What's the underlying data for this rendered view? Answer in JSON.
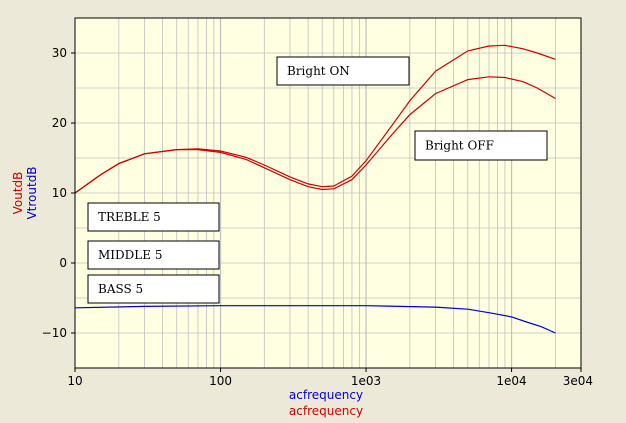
{
  "chart_data": {
    "type": "line",
    "xscale": "log",
    "xlim": [
      10,
      30000
    ],
    "ylim": [
      -15,
      35
    ],
    "x_ticks": [
      {
        "value": 10,
        "label": "10"
      },
      {
        "value": 100,
        "label": "100"
      },
      {
        "value": 1000,
        "label": "1e03"
      },
      {
        "value": 10000,
        "label": "1e04"
      },
      {
        "value": 30000,
        "label": "3e04"
      }
    ],
    "y_ticks": [
      {
        "value": -10,
        "label": "−10"
      },
      {
        "value": 0,
        "label": "0"
      },
      {
        "value": 10,
        "label": "10"
      },
      {
        "value": 20,
        "label": "20"
      },
      {
        "value": 30,
        "label": "30"
      }
    ],
    "xlabel_lines": [
      {
        "text": "acfrequency",
        "color": "#0000CC"
      },
      {
        "text": "acfrequency",
        "color": "#CC0000"
      }
    ],
    "ylabel_lines": [
      {
        "text": "VoutdB",
        "color": "#CC0000"
      },
      {
        "text": "VtroutdB",
        "color": "#0000CC"
      }
    ],
    "grid": true,
    "colors": {
      "red": "#CC0000",
      "blue": "#0000CC",
      "plot_bg": "#FFFFE1",
      "frame_bg": "#ECE9D8"
    },
    "series": [
      {
        "color": "#CC0000",
        "x": [
          10,
          15,
          20,
          30,
          50,
          70,
          100,
          150,
          200,
          300,
          400,
          500,
          600,
          800,
          1000,
          1500,
          2000,
          3000,
          5000,
          7000,
          9000,
          12000,
          15000,
          20000
        ],
        "y": [
          10,
          12.6,
          14.2,
          15.6,
          16.2,
          16.2,
          15.8,
          14.8,
          13.6,
          11.9,
          10.9,
          10.5,
          10.6,
          11.9,
          14,
          18.3,
          21.2,
          24.2,
          26.2,
          26.6,
          26.5,
          25.9,
          25,
          23.5
        ]
      },
      {
        "color": "#CC0000",
        "x": [
          10,
          15,
          20,
          30,
          50,
          70,
          100,
          150,
          200,
          300,
          400,
          500,
          600,
          800,
          1000,
          1500,
          2000,
          3000,
          5000,
          7000,
          9000,
          12000,
          15000,
          20000
        ],
        "y": [
          10,
          12.6,
          14.2,
          15.6,
          16.2,
          16.3,
          16,
          15.1,
          14,
          12.3,
          11.3,
          10.9,
          11,
          12.4,
          14.6,
          19.6,
          23.2,
          27.4,
          30.3,
          31,
          31.1,
          30.6,
          30,
          29.1
        ]
      },
      {
        "color": "#0000CC",
        "x": [
          10,
          30,
          100,
          300,
          1000,
          3000,
          5000,
          7000,
          10000,
          13000,
          16000,
          20000
        ],
        "y": [
          -6.4,
          -6.2,
          -6.1,
          -6.1,
          -6.1,
          -6.3,
          -6.6,
          -7.1,
          -7.7,
          -8.5,
          -9.1,
          -10
        ]
      }
    ],
    "annotations": [
      {
        "id": "bright-on",
        "text": "Bright ON"
      },
      {
        "id": "bright-off",
        "text": "Bright OFF"
      },
      {
        "id": "treble",
        "text": "TREBLE 5"
      },
      {
        "id": "middle",
        "text": "MIDDLE 5"
      },
      {
        "id": "bass",
        "text": "BASS 5"
      }
    ]
  }
}
